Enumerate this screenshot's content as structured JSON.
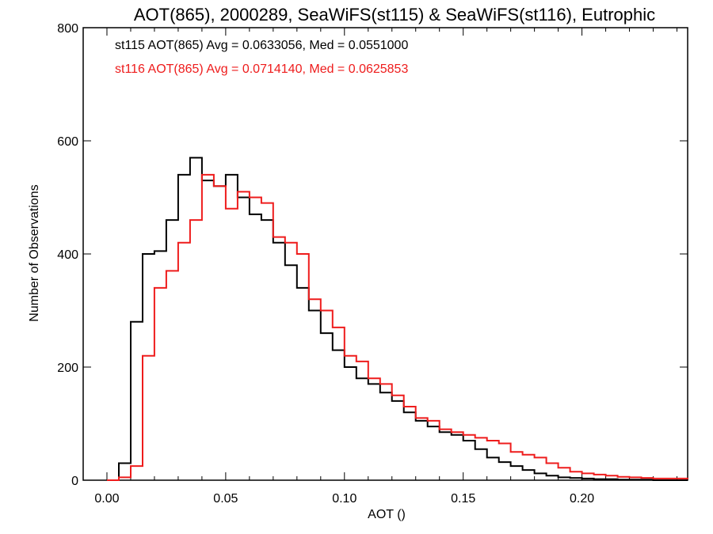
{
  "chart_data": {
    "type": "line",
    "title": "AOT(865), 2000289, SeaWiFS(st115) & SeaWiFS(st116), Eutrophic",
    "xlabel": "AOT ()",
    "ylabel": "Number of Observations",
    "xlim": [
      -0.01,
      0.2445
    ],
    "ylim": [
      0,
      800
    ],
    "xticks": [
      "0.00",
      "0.05",
      "0.10",
      "0.15",
      "0.20"
    ],
    "yticks": [
      "0",
      "200",
      "400",
      "600",
      "800"
    ],
    "x": [
      0.0,
      0.005,
      0.01,
      0.015,
      0.02,
      0.025,
      0.03,
      0.035,
      0.04,
      0.045,
      0.05,
      0.055,
      0.06,
      0.065,
      0.07,
      0.075,
      0.08,
      0.085,
      0.09,
      0.095,
      0.1,
      0.105,
      0.11,
      0.115,
      0.12,
      0.125,
      0.13,
      0.135,
      0.14,
      0.145,
      0.15,
      0.155,
      0.16,
      0.165,
      0.17,
      0.175,
      0.18,
      0.185,
      0.19,
      0.195,
      0.2,
      0.205,
      0.21,
      0.215,
      0.22,
      0.225,
      0.23,
      0.235,
      0.2445
    ],
    "series": [
      {
        "name": "st115",
        "color": "#000000",
        "legend": "st115 AOT(865) Avg = 0.0633056, Med = 0.0551000",
        "values": [
          0,
          30,
          280,
          400,
          405,
          460,
          540,
          570,
          530,
          520,
          540,
          500,
          470,
          460,
          420,
          380,
          340,
          300,
          260,
          230,
          200,
          180,
          170,
          155,
          140,
          120,
          105,
          95,
          85,
          80,
          70,
          55,
          40,
          32,
          25,
          18,
          12,
          8,
          5,
          4,
          3,
          2,
          2,
          1,
          1,
          1,
          0,
          0,
          0
        ]
      },
      {
        "name": "st116",
        "color": "#ee1c1c",
        "legend": "st116 AOT(865) Avg = 0.0714140, Med = 0.0625853",
        "values": [
          0,
          5,
          25,
          220,
          340,
          370,
          420,
          460,
          540,
          520,
          480,
          510,
          500,
          490,
          430,
          420,
          400,
          320,
          300,
          270,
          220,
          210,
          180,
          170,
          150,
          130,
          110,
          105,
          90,
          85,
          80,
          75,
          70,
          65,
          50,
          45,
          40,
          30,
          22,
          15,
          12,
          10,
          8,
          6,
          5,
          4,
          3,
          3,
          2
        ]
      }
    ]
  }
}
